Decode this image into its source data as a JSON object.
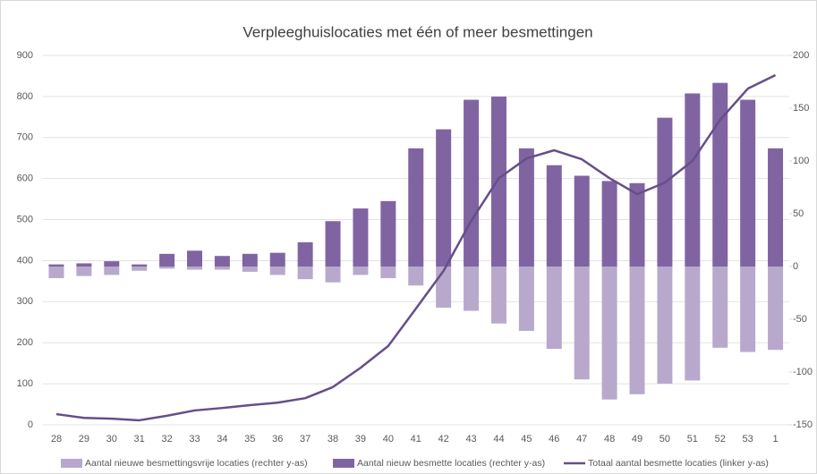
{
  "chart_data": {
    "type": "bar-line",
    "title": "Verpleeghuislocaties met één of meer besmettingen",
    "categories": [
      "28",
      "29",
      "30",
      "31",
      "32",
      "33",
      "34",
      "35",
      "36",
      "37",
      "38",
      "39",
      "40",
      "41",
      "42",
      "43",
      "44",
      "45",
      "46",
      "47",
      "48",
      "49",
      "50",
      "51",
      "52",
      "53",
      "1"
    ],
    "series": [
      {
        "name": "Aantal nieuwe besmettingsvrije locaties (rechter y-as)",
        "type": "bar",
        "axis": "y2",
        "color": "#b8a9cc",
        "values": [
          -11,
          -9,
          -8,
          -4,
          -2,
          -3,
          -3,
          -5,
          -8,
          -12,
          -15,
          -8,
          -11,
          -18,
          -39,
          -42,
          -54,
          -61,
          -78,
          -107,
          -126,
          -121,
          -111,
          -108,
          -77,
          -81,
          -79
        ]
      },
      {
        "name": "Aantal nieuw besmette locaties (rechter y-as)",
        "type": "bar",
        "axis": "y2",
        "color": "#8064a2",
        "values": [
          2,
          3,
          5,
          2,
          12,
          15,
          10,
          12,
          13,
          23,
          43,
          55,
          62,
          112,
          130,
          158,
          161,
          112,
          96,
          86,
          81,
          79,
          141,
          164,
          174,
          158,
          112
        ]
      },
      {
        "name": "Totaal aantal besmette locaties (linker y-as)",
        "type": "line",
        "axis": "y",
        "color": "#664e8a",
        "values": [
          26,
          17,
          15,
          11,
          22,
          35,
          41,
          48,
          54,
          65,
          92,
          139,
          192,
          283,
          375,
          497,
          601,
          649,
          669,
          647,
          601,
          562,
          590,
          643,
          743,
          819,
          852
        ]
      }
    ],
    "ylim": [
      0,
      900
    ],
    "yticks": [
      0,
      100,
      200,
      300,
      400,
      500,
      600,
      700,
      800,
      900
    ],
    "y2lim": [
      -150,
      200
    ],
    "y2ticks": [
      -150,
      -100,
      -50,
      0,
      50,
      100,
      150,
      200
    ],
    "grid": true,
    "legend": "bottom"
  }
}
